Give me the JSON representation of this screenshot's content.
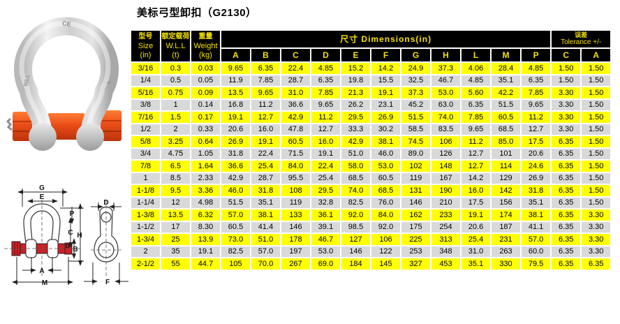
{
  "page": {
    "title": "美标弓型卸扣（G2130）"
  },
  "colors": {
    "row_yellow": "#ffff00",
    "row_gray": "#d9d9d9",
    "header_bg": "#000000",
    "header_text": "#f5e003",
    "pin_orange": "#e8491d",
    "diagram_pin_red": "#cc2026"
  },
  "photo": {
    "description": "galvanized bow shackle with orange safety bolt pin",
    "markings": {
      "ce": "CE",
      "left_leg": "WLL",
      "right_leg": "8"
    }
  },
  "diagram": {
    "front": {
      "g": "G",
      "e": "E",
      "p": "P",
      "c": "C",
      "h": "H",
      "b": "B",
      "d": "D",
      "a": "A",
      "m": "M"
    },
    "side": {
      "d": "D",
      "f": "F"
    }
  },
  "table": {
    "headers": {
      "size": {
        "cn": "型号",
        "en": "Size",
        "unit": "(in)"
      },
      "wll": {
        "cn": "额定载荷",
        "en": "W.L.L",
        "unit": "(t)"
      },
      "weight": {
        "cn": "重量",
        "en": "Weight",
        "unit": "(kg)"
      },
      "dimensions": "尺寸  Dimensions(in)",
      "tolerance": {
        "cn": "误差",
        "en": "Tolerance +/-"
      },
      "dim_letters": [
        "A",
        "B",
        "C",
        "D",
        "E",
        "F",
        "G",
        "H",
        "L",
        "M",
        "P"
      ],
      "tol_letters": [
        "C",
        "A"
      ]
    },
    "rows": [
      [
        "3/16",
        "0.3",
        "0.03",
        "9.65",
        "6.35",
        "22.4",
        "4.85",
        "15.2",
        "14.2",
        "24.9",
        "37.3",
        "4.06",
        "28.4",
        "4.85",
        "1.50",
        "1.50"
      ],
      [
        "1/4",
        "0.5",
        "0.05",
        "11.9",
        "7.85",
        "28.7",
        "6.35",
        "19.8",
        "15.5",
        "32.5",
        "46.7",
        "4.85",
        "35.1",
        "6.35",
        "1.50",
        "1.50"
      ],
      [
        "5/16",
        "0.75",
        "0.09",
        "13.5",
        "9.65",
        "31.0",
        "7.85",
        "21.3",
        "19.1",
        "37.3",
        "53.0",
        "5.60",
        "42.2",
        "7.85",
        "3.30",
        "1.50"
      ],
      [
        "3/8",
        "1",
        "0.14",
        "16.8",
        "11.2",
        "36.6",
        "9.65",
        "26.2",
        "23.1",
        "45.2",
        "63.0",
        "6.35",
        "51.5",
        "9.65",
        "3.30",
        "1.50"
      ],
      [
        "7/16",
        "1.5",
        "0.17",
        "19.1",
        "12.7",
        "42.9",
        "11.2",
        "29.5",
        "26.9",
        "51.5",
        "74.0",
        "7.85",
        "60.5",
        "11.2",
        "3.30",
        "1.50"
      ],
      [
        "1/2",
        "2",
        "0.33",
        "20.6",
        "16.0",
        "47.8",
        "12.7",
        "33.3",
        "30.2",
        "58.5",
        "83.5",
        "9.65",
        "68.5",
        "12.7",
        "3.30",
        "1.50"
      ],
      [
        "5/8",
        "3.25",
        "0.64",
        "26.9",
        "19.1",
        "60.5",
        "16.0",
        "42.9",
        "38.1",
        "74.5",
        "106",
        "11.2",
        "85.0",
        "17.5",
        "6.35",
        "1.50"
      ],
      [
        "3/4",
        "4.75",
        "1.05",
        "31.8",
        "22.4",
        "71.5",
        "19.1",
        "51.0",
        "46.0",
        "89.0",
        "126",
        "12.7",
        "101",
        "20.6",
        "6.35",
        "1.50"
      ],
      [
        "7/8",
        "6.5",
        "1.64",
        "36.6",
        "25.4",
        "84.0",
        "22.4",
        "58.0",
        "53.0",
        "102",
        "148",
        "12.7",
        "114",
        "24.6",
        "6.35",
        "1.50"
      ],
      [
        "1",
        "8.5",
        "2.33",
        "42.9",
        "28.7",
        "95.5",
        "25.4",
        "68.5",
        "60.5",
        "119",
        "167",
        "14.2",
        "129",
        "26.9",
        "6.35",
        "1.50"
      ],
      [
        "1-1/8",
        "9.5",
        "3.36",
        "46.0",
        "31.8",
        "108",
        "29.5",
        "74.0",
        "68.5",
        "131",
        "190",
        "16.0",
        "142",
        "31.8",
        "6.35",
        "1.50"
      ],
      [
        "1-1/4",
        "12",
        "4.98",
        "51.5",
        "35.1",
        "119",
        "32.8",
        "82.5",
        "76.0",
        "146",
        "210",
        "17.5",
        "156",
        "35.1",
        "6.35",
        "1.50"
      ],
      [
        "1-3/8",
        "13.5",
        "6.32",
        "57.0",
        "38.1",
        "133",
        "36.1",
        "92.0",
        "84.0",
        "162",
        "233",
        "19.1",
        "174",
        "38.1",
        "6.35",
        "3.30"
      ],
      [
        "1-1/2",
        "17",
        "8.30",
        "60.5",
        "41.4",
        "146",
        "39.1",
        "98.5",
        "92.0",
        "175",
        "254",
        "20.6",
        "187",
        "41.1",
        "6.35",
        "3.30"
      ],
      [
        "1-3/4",
        "25",
        "13.9",
        "73.0",
        "51.0",
        "178",
        "46.7",
        "127",
        "106",
        "225",
        "313",
        "25.4",
        "231",
        "57.0",
        "6.35",
        "3.30"
      ],
      [
        "2",
        "35",
        "19.1",
        "82.5",
        "57.0",
        "197",
        "53.0",
        "146",
        "122",
        "253",
        "348",
        "31.0",
        "263",
        "60.0",
        "6.35",
        "3.30"
      ],
      [
        "2-1/2",
        "55",
        "44.7",
        "105",
        "70.0",
        "267",
        "69.0",
        "184",
        "145",
        "327",
        "453",
        "35.1",
        "330",
        "79.5",
        "6.35",
        "6.35"
      ]
    ]
  }
}
